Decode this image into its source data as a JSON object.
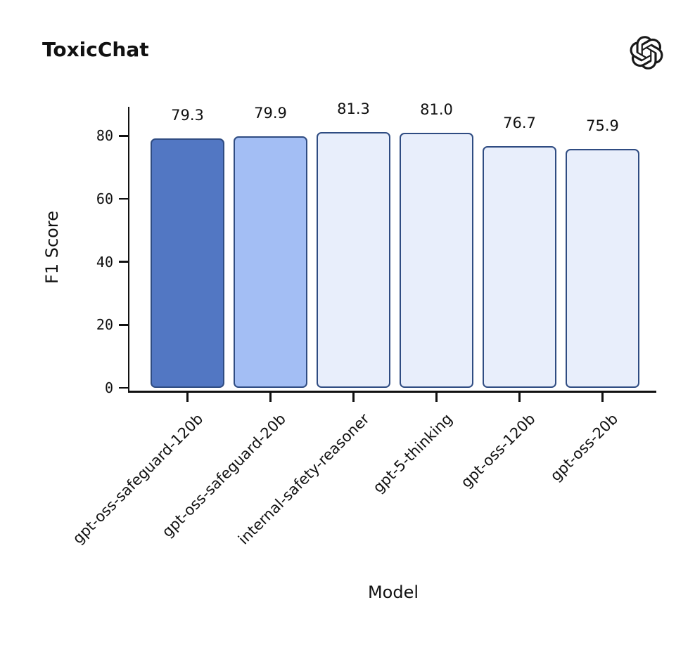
{
  "header": {
    "title": "ToxicChat",
    "logo_icon": "openai-logo"
  },
  "chart_data": {
    "type": "bar",
    "title": "ToxicChat",
    "categories": [
      "gpt-oss-safeguard-120b",
      "gpt-oss-safeguard-20b",
      "internal-safety-reasoner",
      "gpt-5-thinking",
      "gpt-oss-120b",
      "gpt-oss-20b"
    ],
    "values": [
      79.3,
      79.9,
      81.3,
      81.0,
      76.7,
      75.9
    ],
    "value_labels": [
      "79.3",
      "79.9",
      "81.3",
      "81.0",
      "76.7",
      "75.9"
    ],
    "xlabel": "Model",
    "ylabel": "F1 Score",
    "ylim": [
      0,
      89
    ],
    "yticks": [
      0,
      20,
      40,
      60,
      80
    ],
    "grid": false,
    "legend_position": "none",
    "bar_colors": [
      "#5277c3",
      "#a3bef4",
      "#e8eefb",
      "#e8eefb",
      "#e8eefb",
      "#e8eefb"
    ],
    "bar_border_color": "#2f4c82",
    "axis_color": "#111111"
  }
}
